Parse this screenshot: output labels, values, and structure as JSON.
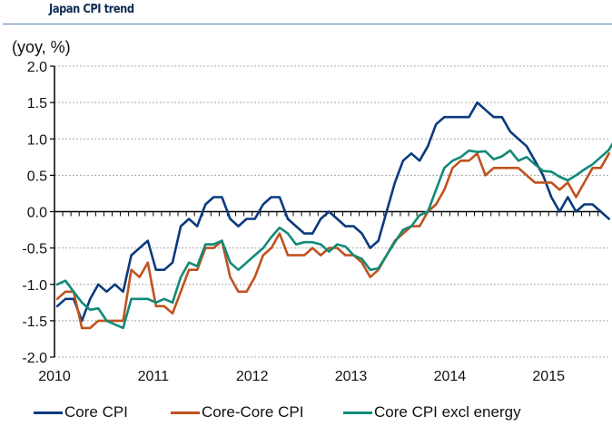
{
  "header": {
    "title": "Japan CPI trend",
    "unit_label": "(yoy, %)"
  },
  "chart_data": {
    "type": "line",
    "title": "Japan CPI trend",
    "ylabel": "(yoy, %)",
    "xlabel": "",
    "ylim": [
      -2.0,
      2.0
    ],
    "yticks": [
      2.0,
      1.5,
      1.0,
      0.5,
      0.0,
      -0.5,
      -1.0,
      -1.5,
      -2.0
    ],
    "ytick_labels": [
      "2.0",
      "1.5",
      "1.0",
      "0.5",
      "0.0",
      "-0.5",
      "-1.0",
      "-1.5",
      "-2.0"
    ],
    "xtick_labels": [
      "2010",
      "2011",
      "2012",
      "2013",
      "2014",
      "2015"
    ],
    "x_start": "2010-01",
    "x_frequency": "monthly",
    "grid": "horizontal dotted",
    "legend_position": "bottom",
    "series": [
      {
        "name": "Core CPI",
        "color": "#0b3a7e",
        "values": [
          -1.3,
          -1.2,
          -1.2,
          -1.5,
          -1.2,
          -1.0,
          -1.1,
          -1.0,
          -1.1,
          -0.6,
          -0.5,
          -0.4,
          -0.8,
          -0.8,
          -0.7,
          -0.2,
          -0.1,
          -0.2,
          0.1,
          0.2,
          0.2,
          -0.1,
          -0.2,
          -0.1,
          -0.1,
          0.1,
          0.2,
          0.2,
          -0.1,
          -0.2,
          -0.3,
          -0.3,
          -0.1,
          0.0,
          -0.1,
          -0.2,
          -0.2,
          -0.3,
          -0.5,
          -0.4,
          0.0,
          0.4,
          0.7,
          0.8,
          0.7,
          0.9,
          1.2,
          1.3,
          1.3,
          1.3,
          1.3,
          1.5,
          1.4,
          1.3,
          1.3,
          1.1,
          1.0,
          0.9,
          0.7,
          0.5,
          0.2,
          0.0,
          0.2,
          0.0,
          0.1,
          0.1,
          0.0,
          -0.1
        ]
      },
      {
        "name": "Core-Core CPI",
        "color": "#c0531e",
        "values": [
          -1.2,
          -1.1,
          -1.1,
          -1.6,
          -1.6,
          -1.5,
          -1.5,
          -1.5,
          -1.5,
          -0.8,
          -0.9,
          -0.7,
          -1.3,
          -1.3,
          -1.4,
          -1.1,
          -0.8,
          -0.8,
          -0.5,
          -0.5,
          -0.4,
          -0.9,
          -1.1,
          -1.1,
          -0.9,
          -0.6,
          -0.5,
          -0.3,
          -0.6,
          -0.6,
          -0.6,
          -0.5,
          -0.6,
          -0.5,
          -0.5,
          -0.6,
          -0.6,
          -0.7,
          -0.9,
          -0.8,
          -0.6,
          -0.4,
          -0.3,
          -0.2,
          -0.2,
          0.0,
          0.1,
          0.3,
          0.6,
          0.7,
          0.7,
          0.8,
          0.5,
          0.6,
          0.6,
          0.6,
          0.6,
          0.5,
          0.4,
          0.4,
          0.4,
          0.3,
          0.4,
          0.2,
          0.4,
          0.6,
          0.6,
          0.8
        ]
      },
      {
        "name": "Core CPI excl energy",
        "color": "#118a78",
        "values": [
          -1.0,
          -0.95,
          -1.1,
          -1.25,
          -1.35,
          -1.33,
          -1.5,
          -1.55,
          -1.6,
          -1.2,
          -1.2,
          -1.2,
          -1.25,
          -1.2,
          -1.25,
          -0.9,
          -0.7,
          -0.75,
          -0.45,
          -0.45,
          -0.4,
          -0.7,
          -0.8,
          -0.7,
          -0.6,
          -0.5,
          -0.35,
          -0.22,
          -0.3,
          -0.45,
          -0.42,
          -0.42,
          -0.45,
          -0.55,
          -0.45,
          -0.48,
          -0.6,
          -0.65,
          -0.8,
          -0.78,
          -0.6,
          -0.42,
          -0.25,
          -0.2,
          -0.05,
          0.0,
          0.3,
          0.6,
          0.7,
          0.75,
          0.84,
          0.82,
          0.83,
          0.72,
          0.76,
          0.84,
          0.7,
          0.75,
          0.65,
          0.56,
          0.55,
          0.48,
          0.43,
          0.5,
          0.58,
          0.65,
          0.75,
          0.85,
          1.05
        ]
      }
    ]
  },
  "legend": {
    "items": [
      {
        "label": "Core CPI",
        "color": "#0b3a7e"
      },
      {
        "label": "Core-Core CPI",
        "color": "#c0531e"
      },
      {
        "label": "Core CPI excl energy",
        "color": "#118a78"
      }
    ]
  }
}
